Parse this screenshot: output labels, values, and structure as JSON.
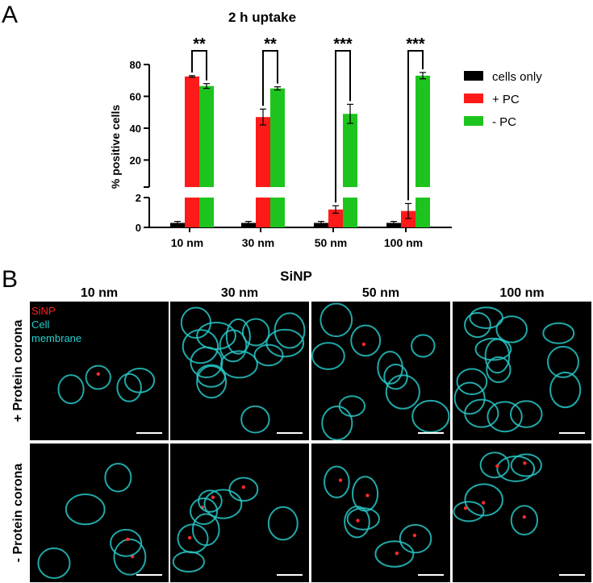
{
  "panels": {
    "a": "A",
    "b": "B"
  },
  "chart_data": {
    "type": "bar",
    "title": "2 h uptake",
    "xlabel": "",
    "ylabel": "% positive cells",
    "categories": [
      "10 nm",
      "30 nm",
      "50 nm",
      "100 nm"
    ],
    "axis_break": {
      "lower": [
        0,
        2
      ],
      "upper": [
        3,
        80
      ]
    },
    "lower_ticks": [
      0,
      2
    ],
    "upper_ticks": [
      20,
      40,
      60,
      80
    ],
    "grid": false,
    "legend_position": "right",
    "series": [
      {
        "name": "cells only",
        "color": "#000000",
        "values": [
          0.3,
          0.3,
          0.3,
          0.3
        ],
        "errors": [
          0.1,
          0.1,
          0.1,
          0.1
        ]
      },
      {
        "name": "+ PC",
        "color": "#ff1a1a",
        "values": [
          72.5,
          47,
          1.2,
          1.1
        ],
        "errors": [
          0.5,
          5,
          0.25,
          0.5
        ]
      },
      {
        "name": "- PC",
        "color": "#1ec41e",
        "values": [
          66.5,
          65,
          49,
          73
        ],
        "errors": [
          1.5,
          1,
          6,
          2
        ]
      }
    ],
    "significance": [
      "**",
      "**",
      "***",
      "***"
    ]
  },
  "micrographs": {
    "title": "SiNP",
    "columns": [
      "10 nm",
      "30 nm",
      "50 nm",
      "100 nm"
    ],
    "rows": [
      "+ Protein corona",
      "- Protein corona"
    ],
    "channel_labels": [
      {
        "text": "SiNP",
        "color": "#ff2020"
      },
      {
        "text": "Cell",
        "color": "#22d3d3"
      },
      {
        "text": "membrane",
        "color": "#22d3d3"
      }
    ],
    "membrane_color": "#27c6c6",
    "particle_color": "#ff2a2a"
  }
}
